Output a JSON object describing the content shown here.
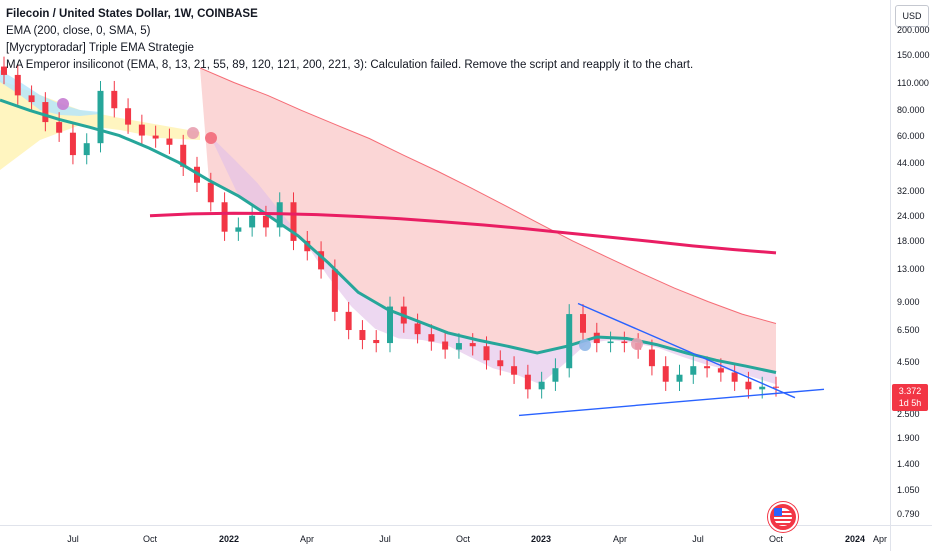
{
  "legend": {
    "title": "Filecoin / United States Dollar, 1W, COINBASE",
    "ema": "EMA (200, close, 0, SMA, 5)",
    "triple": "[Mycryptoradar] Triple EMA Strategie",
    "emperor": "MA Emperor insiliconot (EMA, 8, 13, 21, 55, 89, 120, 121, 200, 221, 3): Calculation failed. Remove the script and reapply it to the chart."
  },
  "price_axis": {
    "currency": "USD",
    "ticks": [
      "200.000",
      "150.000",
      "110.000",
      "80.000",
      "60.000",
      "44.000",
      "32.000",
      "24.000",
      "18.000",
      "13.000",
      "9.000",
      "6.500",
      "4.500",
      "2.500",
      "1.900",
      "1.400",
      "1.050",
      "0.790"
    ],
    "current_price": "3.372",
    "countdown": "1d 5h"
  },
  "time_axis": {
    "labels": [
      {
        "text": "Jul",
        "bold": false
      },
      {
        "text": "Oct",
        "bold": false
      },
      {
        "text": "2022",
        "bold": true
      },
      {
        "text": "Apr",
        "bold": false
      },
      {
        "text": "Jul",
        "bold": false
      },
      {
        "text": "Oct",
        "bold": false
      },
      {
        "text": "2023",
        "bold": true
      },
      {
        "text": "Apr",
        "bold": false
      },
      {
        "text": "Jul",
        "bold": false
      },
      {
        "text": "Oct",
        "bold": false
      },
      {
        "text": "2024",
        "bold": true
      },
      {
        "text": "Apr",
        "bold": false
      }
    ]
  },
  "colors": {
    "up": "#26a69a",
    "down": "#f23645",
    "ema200": "#e91e63",
    "ema_mid": "#26a69a",
    "trendline": "#2962ff",
    "red_cloud": "#f8b4b4",
    "purple_cloud": "#e1bee7",
    "yellow_cloud": "#fff3b0",
    "blue_cloud": "#b3e5fc"
  },
  "chart_data": {
    "type": "candlestick",
    "symbol": "FIL/USD",
    "interval": "1W",
    "exchange": "COINBASE",
    "y_scale": "log",
    "ylim": [
      0.7,
      230
    ],
    "last_price": 3.372,
    "close_path": [
      120,
      95,
      88,
      70,
      62,
      48,
      55,
      100,
      82,
      68,
      60,
      58,
      54,
      42,
      35,
      28,
      20,
      21,
      24,
      21,
      28,
      18,
      16,
      13,
      8,
      6.5,
      5.8,
      5.6,
      8.5,
      7,
      6.2,
      5.7,
      5.2,
      5.6,
      5.4,
      4.6,
      4.3,
      3.9,
      3.3,
      3.6,
      4.2,
      7.8,
      6.3,
      5.6,
      5.7,
      5.6,
      5.2,
      4.3,
      3.6,
      3.9,
      4.3,
      4.2,
      4.0,
      3.6,
      3.3,
      3.4,
      3.372
    ],
    "ema200_path": [
      24,
      24.5,
      24.7,
      24.6,
      24.3,
      23.8,
      23.2,
      22.4,
      21.6,
      20.7,
      19.7,
      18.8,
      17.9,
      17.0,
      16.3,
      15.7
    ],
    "ema_mid_path": [
      90,
      80,
      72,
      66,
      60,
      52,
      44,
      36,
      30,
      24,
      19,
      14,
      10,
      8.2,
      7.2,
      6.3,
      5.8,
      5.4,
      5.0,
      5.4,
      6.0,
      5.9,
      5.5,
      5.0,
      4.6,
      4.3,
      4.0
    ]
  }
}
